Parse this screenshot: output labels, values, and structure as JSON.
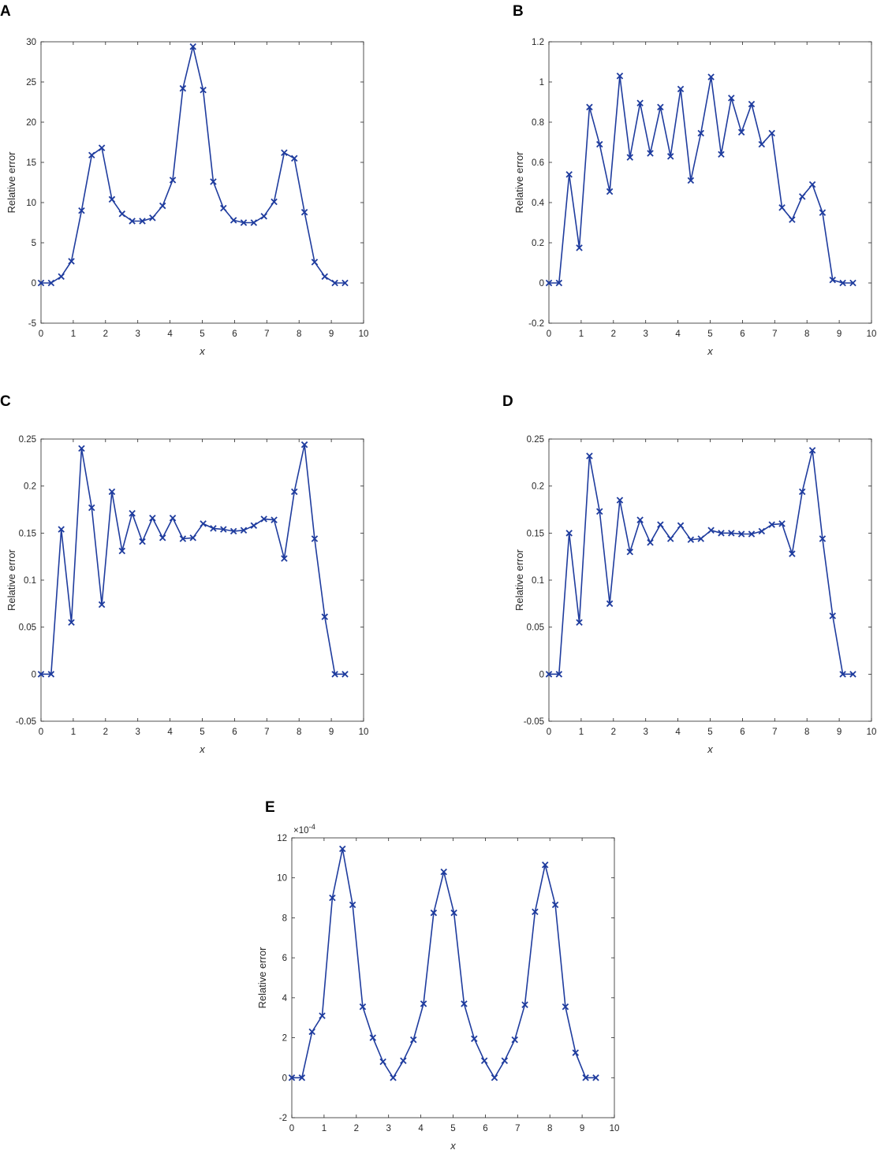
{
  "figure": {
    "series_color": "#1f3c9e",
    "marker": "x"
  },
  "chart_data": [
    {
      "panel": "A",
      "type": "line",
      "xlabel": "x",
      "ylabel": "Relative error",
      "xlim": [
        0,
        10
      ],
      "ylim": [
        -5,
        30
      ],
      "xticks": [
        "0",
        "1",
        "2",
        "3",
        "4",
        "5",
        "6",
        "7",
        "8",
        "9",
        "10"
      ],
      "yticks": [
        "-5",
        "0",
        "5",
        "10",
        "15",
        "20",
        "25",
        "30"
      ],
      "exponent_label": "",
      "x": [
        0,
        0.314,
        0.628,
        0.942,
        1.257,
        1.571,
        1.885,
        2.199,
        2.513,
        2.827,
        3.142,
        3.456,
        3.77,
        4.084,
        4.398,
        4.712,
        5.027,
        5.341,
        5.655,
        5.969,
        6.283,
        6.597,
        6.912,
        7.226,
        7.54,
        7.854,
        8.168,
        8.482,
        8.796,
        9.11,
        9.425
      ],
      "y": [
        0,
        0,
        0.8,
        2.7,
        9.0,
        15.9,
        16.8,
        10.4,
        8.6,
        7.7,
        7.7,
        8.1,
        9.6,
        12.8,
        24.2,
        29.4,
        24.0,
        12.6,
        9.3,
        7.8,
        7.5,
        7.5,
        8.3,
        10.1,
        16.2,
        15.5,
        8.8,
        2.6,
        0.8,
        0,
        0
      ]
    },
    {
      "panel": "B",
      "type": "line",
      "xlabel": "x",
      "ylabel": "Relative error",
      "xlim": [
        0,
        10
      ],
      "ylim": [
        -0.2,
        1.2
      ],
      "xticks": [
        "0",
        "1",
        "2",
        "3",
        "4",
        "5",
        "6",
        "7",
        "8",
        "9",
        "10"
      ],
      "yticks": [
        "-0.2",
        "0",
        "0.2",
        "0.4",
        "0.6",
        "0.8",
        "1",
        "1.2"
      ],
      "exponent_label": "",
      "x": [
        0,
        0.314,
        0.628,
        0.942,
        1.257,
        1.571,
        1.885,
        2.199,
        2.513,
        2.827,
        3.142,
        3.456,
        3.77,
        4.084,
        4.398,
        4.712,
        5.027,
        5.341,
        5.655,
        5.969,
        6.283,
        6.597,
        6.912,
        7.226,
        7.54,
        7.854,
        8.168,
        8.482,
        8.796,
        9.11,
        9.425
      ],
      "y": [
        0,
        0,
        0.54,
        0.175,
        0.875,
        0.69,
        0.455,
        1.03,
        0.625,
        0.895,
        0.645,
        0.875,
        0.63,
        0.965,
        0.51,
        0.745,
        1.025,
        0.64,
        0.92,
        0.75,
        0.89,
        0.69,
        0.745,
        0.375,
        0.315,
        0.43,
        0.49,
        0.35,
        0.015,
        0,
        0
      ]
    },
    {
      "panel": "C",
      "type": "line",
      "xlabel": "x",
      "ylabel": "Relative error",
      "xlim": [
        0,
        10
      ],
      "ylim": [
        -0.05,
        0.25
      ],
      "xticks": [
        "0",
        "1",
        "2",
        "3",
        "4",
        "5",
        "6",
        "7",
        "8",
        "9",
        "10"
      ],
      "yticks": [
        "-0.05",
        "0",
        "0.05",
        "0.1",
        "0.15",
        "0.2",
        "0.25"
      ],
      "exponent_label": "",
      "x": [
        0,
        0.314,
        0.628,
        0.942,
        1.257,
        1.571,
        1.885,
        2.199,
        2.513,
        2.827,
        3.142,
        3.456,
        3.77,
        4.084,
        4.398,
        4.712,
        5.027,
        5.341,
        5.655,
        5.969,
        6.283,
        6.597,
        6.912,
        7.226,
        7.54,
        7.854,
        8.168,
        8.482,
        8.796,
        9.11,
        9.425
      ],
      "y": [
        0,
        0,
        0.154,
        0.055,
        0.24,
        0.177,
        0.074,
        0.194,
        0.131,
        0.171,
        0.141,
        0.166,
        0.145,
        0.166,
        0.144,
        0.145,
        0.16,
        0.155,
        0.154,
        0.152,
        0.153,
        0.158,
        0.165,
        0.164,
        0.123,
        0.194,
        0.244,
        0.144,
        0.061,
        0,
        0
      ]
    },
    {
      "panel": "D",
      "type": "line",
      "xlabel": "x",
      "ylabel": "Relative error",
      "xlim": [
        0,
        10
      ],
      "ylim": [
        -0.05,
        0.25
      ],
      "xticks": [
        "0",
        "1",
        "2",
        "3",
        "4",
        "5",
        "6",
        "7",
        "8",
        "9",
        "10"
      ],
      "yticks": [
        "-0.05",
        "0",
        "0.05",
        "0.1",
        "0.15",
        "0.2",
        "0.25"
      ],
      "exponent_label": "",
      "x": [
        0,
        0.314,
        0.628,
        0.942,
        1.257,
        1.571,
        1.885,
        2.199,
        2.513,
        2.827,
        3.142,
        3.456,
        3.77,
        4.084,
        4.398,
        4.712,
        5.027,
        5.341,
        5.655,
        5.969,
        6.283,
        6.597,
        6.912,
        7.226,
        7.54,
        7.854,
        8.168,
        8.482,
        8.796,
        9.11,
        9.425
      ],
      "y": [
        0,
        0,
        0.15,
        0.055,
        0.232,
        0.173,
        0.075,
        0.185,
        0.13,
        0.164,
        0.14,
        0.159,
        0.144,
        0.158,
        0.143,
        0.144,
        0.153,
        0.15,
        0.15,
        0.149,
        0.149,
        0.152,
        0.159,
        0.16,
        0.128,
        0.194,
        0.238,
        0.144,
        0.062,
        0,
        0
      ]
    },
    {
      "panel": "E",
      "type": "line",
      "xlabel": "x",
      "ylabel": "Relative error",
      "xlim": [
        0,
        10
      ],
      "ylim": [
        -2,
        12
      ],
      "xticks": [
        "0",
        "1",
        "2",
        "3",
        "4",
        "5",
        "6",
        "7",
        "8",
        "9",
        "10"
      ],
      "yticks": [
        "-2",
        "0",
        "2",
        "4",
        "6",
        "8",
        "10",
        "12"
      ],
      "exponent_label": "×10^-4",
      "exponent_base": "×10",
      "exponent_power": "-4",
      "y_scale": 0.0001,
      "x": [
        0,
        0.314,
        0.628,
        0.942,
        1.257,
        1.571,
        1.885,
        2.199,
        2.513,
        2.827,
        3.142,
        3.456,
        3.77,
        4.084,
        4.398,
        4.712,
        5.027,
        5.341,
        5.655,
        5.969,
        6.283,
        6.597,
        6.912,
        7.226,
        7.54,
        7.854,
        8.168,
        8.482,
        8.796,
        9.11,
        9.425
      ],
      "y": [
        0,
        0,
        2.3,
        3.1,
        9.0,
        11.45,
        8.65,
        3.55,
        2.0,
        0.8,
        0,
        0.85,
        1.9,
        3.7,
        8.25,
        10.3,
        8.25,
        3.7,
        1.95,
        0.85,
        0,
        0.85,
        1.9,
        3.65,
        8.3,
        10.65,
        8.65,
        3.55,
        1.25,
        0,
        0
      ]
    }
  ]
}
